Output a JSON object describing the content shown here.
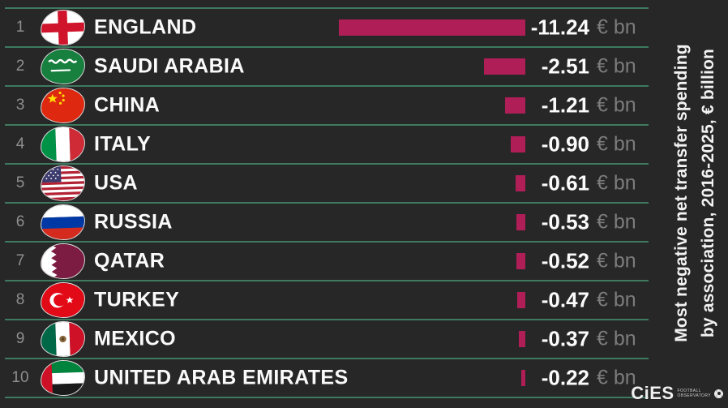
{
  "title": {
    "line1": "Most negative net transfer spending",
    "line2": "by association, 2016-2025, € billion"
  },
  "unit_label": "€ bn",
  "colors": {
    "background": "#272727",
    "divider_green": "#3e7a5f",
    "bar_magenta": "#b01e58",
    "rank_gray": "#8f8f8f",
    "unit_gray": "#7c7c7c",
    "text_white": "#fafafa"
  },
  "rows": [
    {
      "rank": "1",
      "country": "ENGLAND",
      "value_label": "-11.24",
      "flag": "england-flag"
    },
    {
      "rank": "2",
      "country": "SAUDI ARABIA",
      "value_label": "-2.51",
      "flag": "saudi-arabia-flag"
    },
    {
      "rank": "3",
      "country": "CHINA",
      "value_label": "-1.21",
      "flag": "china-flag"
    },
    {
      "rank": "4",
      "country": "ITALY",
      "value_label": "-0.90",
      "flag": "italy-flag"
    },
    {
      "rank": "5",
      "country": "USA",
      "value_label": "-0.61",
      "flag": "usa-flag"
    },
    {
      "rank": "6",
      "country": "RUSSIA",
      "value_label": "-0.53",
      "flag": "russia-flag"
    },
    {
      "rank": "7",
      "country": "QATAR",
      "value_label": "-0.52",
      "flag": "qatar-flag"
    },
    {
      "rank": "8",
      "country": "TURKEY",
      "value_label": "-0.47",
      "flag": "turkey-flag"
    },
    {
      "rank": "9",
      "country": "MEXICO",
      "value_label": "-0.37",
      "flag": "mexico-flag"
    },
    {
      "rank": "10",
      "country": "UNITED ARAB EMIRATES",
      "value_label": "-0.22",
      "flag": "uae-flag"
    }
  ],
  "chart_data": {
    "type": "bar",
    "orientation": "horizontal",
    "title": "Most negative net transfer spending by association, 2016-2025, € billion",
    "categories": [
      "ENGLAND",
      "SAUDI ARABIA",
      "CHINA",
      "ITALY",
      "USA",
      "RUSSIA",
      "QATAR",
      "TURKEY",
      "MEXICO",
      "UNITED ARAB EMIRATES"
    ],
    "values": [
      -11.24,
      -2.51,
      -1.21,
      -0.9,
      -0.61,
      -0.53,
      -0.52,
      -0.47,
      -0.37,
      -0.22
    ],
    "ranks": [
      1,
      2,
      3,
      4,
      5,
      6,
      7,
      8,
      9,
      10
    ],
    "unit": "€ bn",
    "bar_color": "#b01e58",
    "bars_right_aligned": true,
    "legend": "none",
    "grid": "row-dividers-only"
  },
  "logo": {
    "name": "CiES",
    "sub_line1": "FOOTBALL",
    "sub_line2": "OBSERVATORY",
    "icon": "soccer-ball-icon"
  }
}
